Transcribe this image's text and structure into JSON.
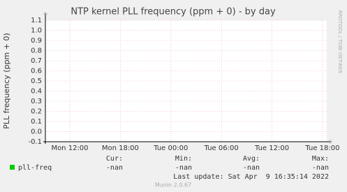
{
  "chart_data": {
    "type": "line",
    "title": "NTP kernel PLL frequency (ppm + 0) - by day",
    "y_label": "PLL frequency (ppm + 0)",
    "side_text": "RRDTOOL / TOBI OETIKER",
    "ylim": [
      -0.1,
      1.1
    ],
    "yticks": [
      1.1,
      {
        "value": 1.0,
        "label": "1.0"
      },
      0.9,
      0.8,
      0.7,
      0.6,
      0.5,
      0.4,
      0.3,
      0.2,
      0.1,
      {
        "value": 0.0,
        "label": "0.0"
      },
      -0.1
    ],
    "xlim": [
      9.1,
      42.5
    ],
    "xticks": [
      {
        "value": 12,
        "label": "Mon 12:00"
      },
      {
        "value": 18,
        "label": "Mon 18:00"
      },
      {
        "value": 24,
        "label": "Tue 00:00"
      },
      {
        "value": 30,
        "label": "Tue 06:00"
      },
      {
        "value": 36,
        "label": "Tue 12:00"
      },
      {
        "value": 42,
        "label": "Tue 18:00"
      }
    ],
    "grid": true,
    "series": [
      {
        "name": "pll-freq",
        "color": "#00cc00"
      }
    ],
    "legend_table": {
      "columns": [
        "Cur:",
        "Min:",
        "Avg:",
        "Max:"
      ],
      "values": [
        "-nan",
        "-nan",
        "-nan",
        "-nan"
      ]
    },
    "last_update": "Last update: Sat Apr  9 16:35:14 2022",
    "footer": "Munin 2.0.67"
  }
}
